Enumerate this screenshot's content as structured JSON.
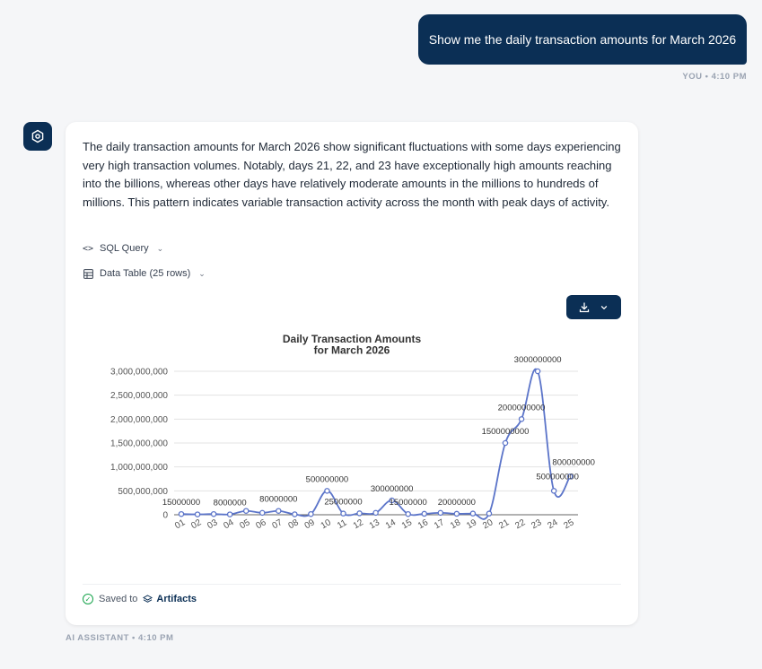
{
  "user_message": {
    "text": "Show me the daily transaction amounts for March 2026",
    "meta": "YOU • 4:10 PM"
  },
  "assistant": {
    "avatar_icon": "hexagon-settings-icon",
    "text": "The daily transaction amounts for March 2026 show significant fluctuations with some days experiencing very high transaction volumes. Notably, days 21, 22, and 23 have exceptionally high amounts reaching into the billions, whereas other days have relatively moderate amounts in the millions to hundreds of millions. This pattern indicates variable transaction activity across the month with peak days of activity.",
    "sql_toggle": "SQL Query",
    "table_toggle": "Data Table (25 rows)",
    "saved_label": "Saved to",
    "saved_link": "Artifacts",
    "meta": "AI ASSISTANT • 4:10 PM"
  },
  "colors": {
    "primary": "#0b2f55",
    "series": "#5b74c9",
    "success": "#16a34a"
  },
  "chart_data": {
    "type": "line",
    "title": [
      "Daily Transaction Amounts",
      "for March 2026"
    ],
    "categories": [
      "01",
      "02",
      "03",
      "04",
      "05",
      "06",
      "07",
      "08",
      "09",
      "10",
      "11",
      "12",
      "13",
      "14",
      "15",
      "16",
      "17",
      "18",
      "19",
      "20",
      "21",
      "22",
      "23",
      "24",
      "25"
    ],
    "values": [
      15000000,
      8000000,
      15000000,
      8000000,
      80000000,
      40000000,
      80000000,
      10000000,
      15000000,
      500000000,
      25000000,
      30000000,
      40000000,
      300000000,
      15000000,
      20000000,
      40000000,
      20000000,
      25000000,
      25000000,
      1500000000,
      2000000000,
      3000000000,
      500000000,
      800000000
    ],
    "data_labels": [
      {
        "index": 0,
        "text": "15000000"
      },
      {
        "index": 3,
        "text": "8000000"
      },
      {
        "index": 6,
        "text": "80000000"
      },
      {
        "index": 9,
        "text": "500000000"
      },
      {
        "index": 10,
        "text": "25000000"
      },
      {
        "index": 13,
        "text": "300000000"
      },
      {
        "index": 14,
        "text": "15000000"
      },
      {
        "index": 17,
        "text": "20000000"
      },
      {
        "index": 20,
        "text": "1500000000"
      },
      {
        "index": 21,
        "text": "2000000000"
      },
      {
        "index": 22,
        "text": "3000000000"
      },
      {
        "index": 23,
        "text": "500000000"
      },
      {
        "index": 24,
        "text": "800000000"
      }
    ],
    "yticks": [
      0,
      500000000,
      1000000000,
      1500000000,
      2000000000,
      2500000000,
      3000000000
    ],
    "ytick_labels": [
      "0",
      "500,000,000",
      "1,000,000,000",
      "1,500,000,000",
      "2,000,000,000",
      "2,500,000,000",
      "3,000,000,000"
    ],
    "ylim": [
      0,
      3000000000
    ],
    "grid": true,
    "legend": "none"
  }
}
